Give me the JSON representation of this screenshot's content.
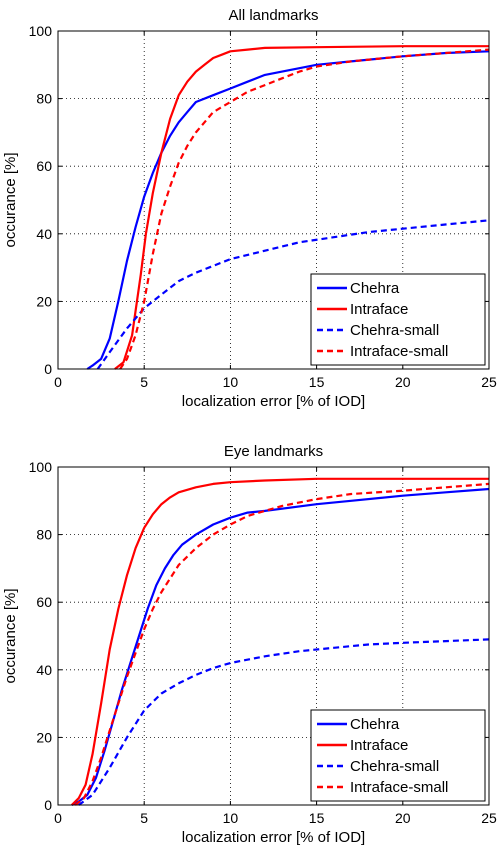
{
  "chart_data": [
    {
      "type": "line",
      "title": "All landmarks",
      "xlabel": "localization error [% of IOD]",
      "ylabel": "occurance [%]",
      "xlim": [
        0,
        25
      ],
      "ylim": [
        0,
        100
      ],
      "xticks": [
        0,
        5,
        10,
        15,
        20,
        25
      ],
      "yticks": [
        0,
        20,
        40,
        60,
        80,
        100
      ],
      "grid": true,
      "legend_position": "bottom-right",
      "series": [
        {
          "name": "Chehra",
          "color": "#0000ff",
          "dash": "solid",
          "x": [
            1.7,
            2.0,
            2.5,
            3.0,
            3.5,
            4.0,
            4.5,
            5.0,
            5.5,
            6.0,
            6.5,
            7.0,
            7.5,
            8.0,
            9.0,
            10.0,
            11.0,
            12.0,
            13.0,
            15.0,
            17.0,
            20.0,
            22.5,
            25.0
          ],
          "y": [
            0,
            1,
            3,
            9,
            20,
            32,
            42,
            51,
            58,
            64,
            69,
            73,
            76,
            79,
            81,
            83,
            85,
            87,
            88,
            90,
            91,
            92.5,
            93.5,
            94
          ]
        },
        {
          "name": "Intraface",
          "color": "#ff0000",
          "dash": "solid",
          "x": [
            3.3,
            3.8,
            4.3,
            4.8,
            5.1,
            5.5,
            6.0,
            6.5,
            7.0,
            7.5,
            8.0,
            8.5,
            9.0,
            9.5,
            10.0,
            11.0,
            12.0,
            15.0,
            20.0,
            25.0
          ],
          "y": [
            0,
            2,
            10,
            28,
            40,
            52,
            64,
            74,
            81,
            85,
            88,
            90,
            92,
            93,
            94,
            94.5,
            95,
            95.2,
            95.5,
            95.5
          ]
        },
        {
          "name": "Chehra-small",
          "color": "#0000ff",
          "dash": "dashed",
          "x": [
            2.3,
            3.0,
            4.0,
            5.0,
            6.0,
            7.0,
            8.0,
            9.0,
            10.0,
            12.0,
            14.0,
            16.0,
            18.0,
            20.0,
            22.0,
            25.0
          ],
          "y": [
            0,
            5,
            12,
            18,
            22,
            26,
            28.5,
            30.5,
            32.5,
            35,
            37.5,
            39,
            40.5,
            41.5,
            42.5,
            44
          ]
        },
        {
          "name": "Intraface-small",
          "color": "#ff0000",
          "dash": "dashed",
          "x": [
            3.6,
            4.0,
            4.5,
            5.0,
            5.5,
            6.0,
            6.5,
            7.0,
            7.5,
            8.0,
            8.5,
            9.0,
            10.0,
            11.0,
            12.0,
            13.0,
            14.0,
            15.0,
            17.0,
            20.0,
            22.5,
            25.0
          ],
          "y": [
            0,
            3,
            10,
            20,
            34,
            46,
            54,
            61,
            66,
            70,
            73,
            76,
            79,
            82,
            84,
            86,
            88,
            89.5,
            91,
            92.5,
            93.5,
            94.5
          ]
        }
      ]
    },
    {
      "type": "line",
      "title": "Eye landmarks",
      "xlabel": "localization error [% of IOD]",
      "ylabel": "occurance [%]",
      "xlim": [
        0,
        25
      ],
      "ylim": [
        0,
        100
      ],
      "xticks": [
        0,
        5,
        10,
        15,
        20,
        25
      ],
      "yticks": [
        0,
        20,
        40,
        60,
        80,
        100
      ],
      "grid": true,
      "legend_position": "bottom-right",
      "series": [
        {
          "name": "Chehra",
          "color": "#0000ff",
          "dash": "solid",
          "x": [
            0.8,
            1.2,
            1.7,
            2.2,
            2.7,
            3.2,
            3.7,
            4.2,
            4.7,
            5.2,
            5.7,
            6.2,
            6.7,
            7.2,
            8.0,
            9.0,
            10.0,
            11.0,
            12.0,
            15.0,
            17.0,
            20.0,
            22.5,
            25.0
          ],
          "y": [
            0,
            1,
            3,
            8,
            16,
            25,
            34,
            42,
            50,
            58,
            65,
            70,
            74,
            77,
            80,
            83,
            85,
            86.5,
            87,
            89,
            90,
            91.5,
            92.5,
            93.5
          ]
        },
        {
          "name": "Intraface",
          "color": "#ff0000",
          "dash": "solid",
          "x": [
            0.8,
            1.2,
            1.6,
            2.0,
            2.5,
            3.0,
            3.5,
            4.0,
            4.5,
            5.0,
            5.5,
            6.0,
            6.5,
            7.0,
            8.0,
            9.0,
            10.0,
            12.0,
            15.0,
            20.0,
            25.0
          ],
          "y": [
            0,
            2,
            6,
            15,
            30,
            46,
            58,
            68,
            76,
            82,
            86,
            89,
            91,
            92.5,
            94,
            95,
            95.5,
            96,
            96.5,
            96.5,
            96.5
          ]
        },
        {
          "name": "Chehra-small",
          "color": "#0000ff",
          "dash": "dashed",
          "x": [
            1.2,
            2.0,
            3.0,
            4.0,
            5.0,
            6.0,
            7.0,
            8.0,
            9.0,
            10.0,
            12.0,
            14.0,
            16.0,
            18.0,
            20.0,
            22.5,
            25.0
          ],
          "y": [
            0,
            3,
            11,
            20,
            28,
            33,
            36,
            38.5,
            40.5,
            42,
            44,
            45.5,
            46.5,
            47.5,
            48,
            48.5,
            49
          ]
        },
        {
          "name": "Intraface-small",
          "color": "#ff0000",
          "dash": "dashed",
          "x": [
            1.0,
            1.5,
            2.0,
            2.5,
            3.0,
            3.5,
            4.0,
            4.5,
            5.0,
            5.5,
            6.0,
            6.5,
            7.0,
            8.0,
            9.0,
            10.0,
            11.0,
            12.0,
            13.0,
            15.0,
            17.0,
            20.0,
            22.5,
            25.0
          ],
          "y": [
            0,
            2,
            7,
            14,
            22,
            30,
            38,
            45,
            52,
            58,
            63,
            67,
            71,
            76,
            80,
            83,
            85.5,
            87,
            88.5,
            90.5,
            92,
            93,
            94,
            95
          ]
        }
      ]
    }
  ]
}
